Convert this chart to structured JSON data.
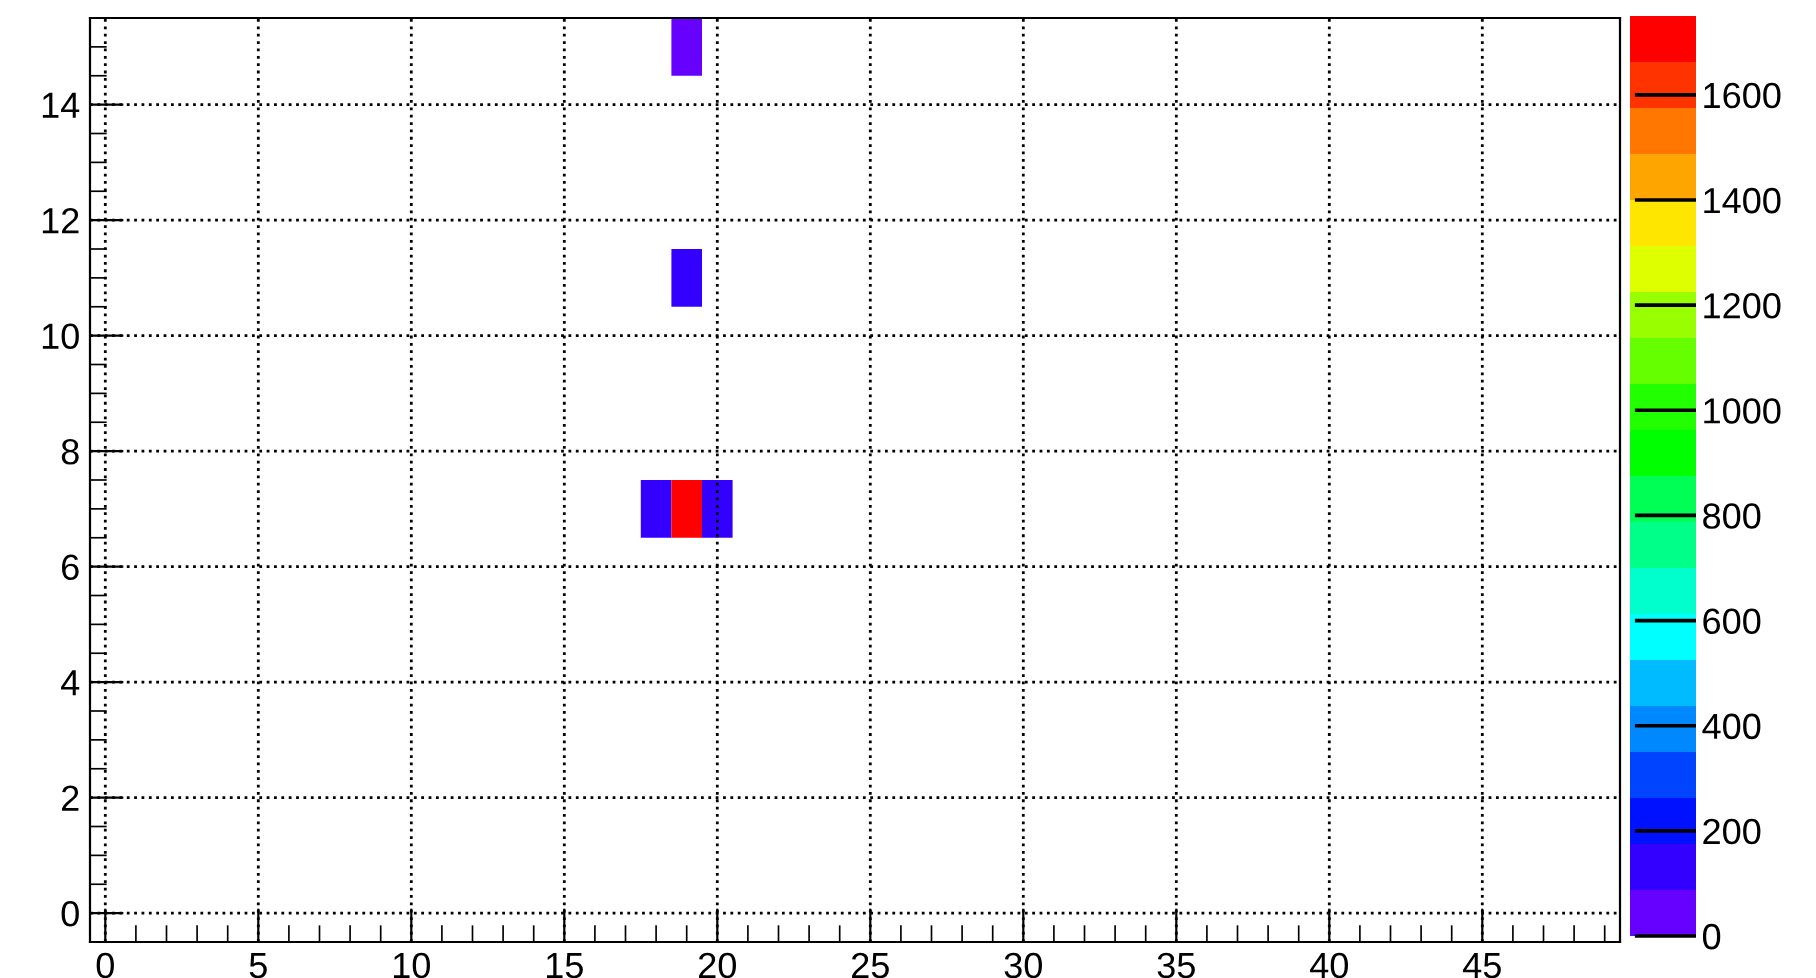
{
  "chart_data": {
    "type": "scatter",
    "marker": "square",
    "x": [
      18,
      19,
      20,
      19,
      19
    ],
    "values": [
      7,
      7,
      7,
      11,
      15
    ],
    "cvalues": [
      130,
      1700,
      130,
      130,
      50
    ],
    "xlim": [
      -0.5,
      49.5
    ],
    "ylim": [
      -0.5,
      15.5
    ],
    "xticks": [
      0,
      5,
      10,
      15,
      20,
      25,
      30,
      35,
      40,
      45
    ],
    "yticks": [
      0,
      2,
      4,
      6,
      8,
      10,
      12,
      14
    ],
    "clim": [
      0,
      1750
    ],
    "cticks": [
      0,
      200,
      400,
      600,
      800,
      1000,
      1200,
      1400,
      1600
    ],
    "grid": true
  }
}
